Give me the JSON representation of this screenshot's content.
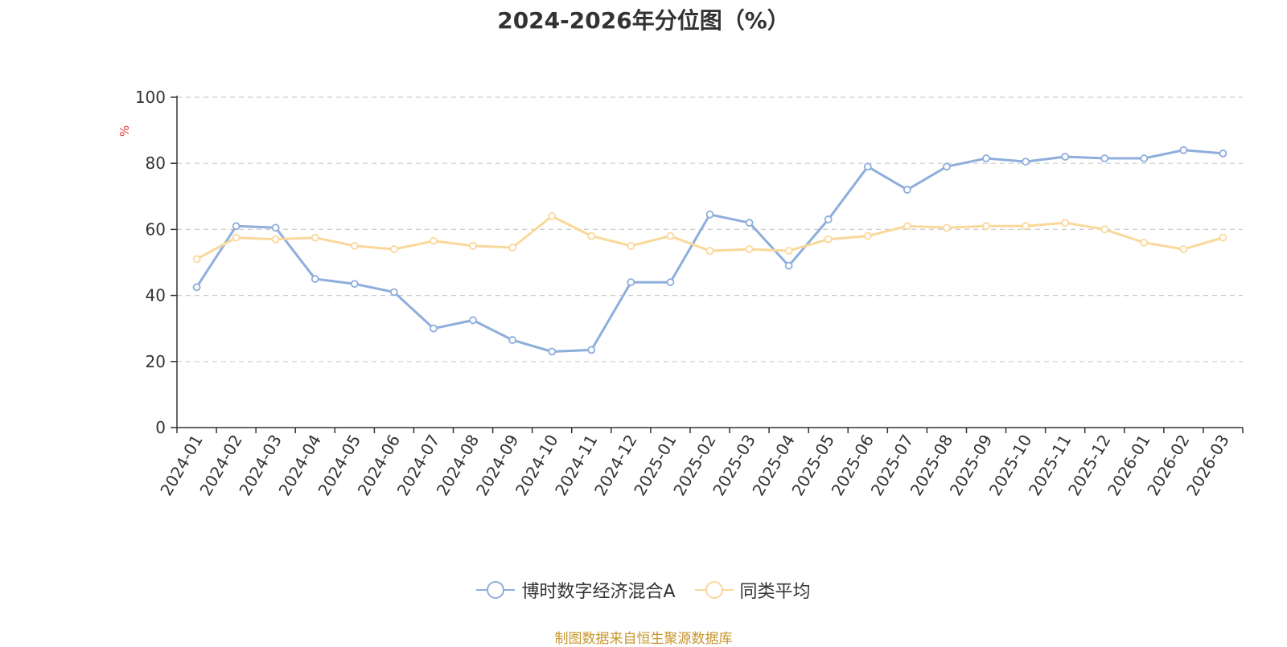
{
  "title": "2024-2026年分位图（%）",
  "source_note": "制图数据来自恒生聚源数据库",
  "chart_data": {
    "type": "line",
    "title": "2024-2026年分位图（%）",
    "ylabel": "%",
    "xlabel": "",
    "ylim": [
      0,
      100
    ],
    "yticks": [
      0,
      20,
      40,
      60,
      80,
      100
    ],
    "grid": "horizontal dashed",
    "legend_position": "bottom-center",
    "categories": [
      "2024-01",
      "2024-02",
      "2024-03",
      "2024-04",
      "2024-05",
      "2024-06",
      "2024-07",
      "2024-08",
      "2024-09",
      "2024-10",
      "2024-11",
      "2024-12",
      "2025-01",
      "2025-02",
      "2025-03",
      "2025-04",
      "2025-05",
      "2025-06",
      "2025-07",
      "2025-08",
      "2025-09",
      "2025-10",
      "2025-11",
      "2025-12",
      "2026-01",
      "2026-02",
      "2026-03"
    ],
    "series": [
      {
        "name": "博时数字经济混合A",
        "color": "#8eaedc",
        "values": [
          42.5,
          61,
          60.5,
          45,
          43.5,
          41,
          30,
          32.5,
          26.5,
          23,
          23.5,
          44,
          44,
          64.5,
          62,
          49,
          63,
          79,
          72,
          79,
          81.5,
          80.5,
          82,
          81.5,
          81.5,
          84,
          83
        ]
      },
      {
        "name": "同类平均",
        "color": "#fad89b",
        "values": [
          51,
          57.5,
          57,
          57.5,
          55,
          54,
          56.5,
          55,
          54.5,
          64,
          58,
          55,
          58,
          53.5,
          54,
          53.5,
          57,
          58,
          61,
          60.5,
          61,
          61,
          62,
          60,
          56,
          54,
          57.5
        ]
      }
    ]
  }
}
